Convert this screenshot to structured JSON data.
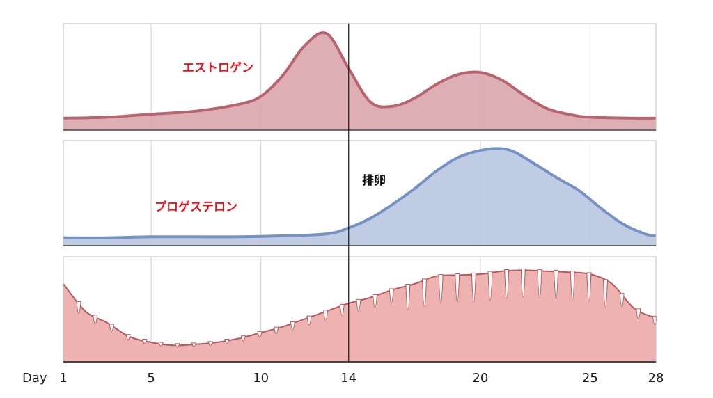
{
  "chart_data": {
    "type": "area",
    "x_axis": {
      "prefix_label": "Day",
      "ticks": [
        1,
        5,
        10,
        14,
        20,
        25,
        28
      ],
      "range": [
        1,
        28
      ]
    },
    "ovulation": {
      "day": 14,
      "label": "排卵"
    },
    "panels": [
      {
        "label": "エストロゲン",
        "color": "#b8646e",
        "fill": "#d9a6ad",
        "values": [
          [
            1,
            0.12
          ],
          [
            3,
            0.13
          ],
          [
            5,
            0.16
          ],
          [
            7,
            0.19
          ],
          [
            9,
            0.26
          ],
          [
            10,
            0.34
          ],
          [
            11,
            0.55
          ],
          [
            12,
            0.85
          ],
          [
            13,
            0.97
          ],
          [
            14,
            0.62
          ],
          [
            15,
            0.28
          ],
          [
            16,
            0.24
          ],
          [
            17,
            0.32
          ],
          [
            18,
            0.46
          ],
          [
            19,
            0.56
          ],
          [
            20,
            0.58
          ],
          [
            21,
            0.5
          ],
          [
            22,
            0.35
          ],
          [
            23,
            0.22
          ],
          [
            24,
            0.16
          ],
          [
            25,
            0.13
          ],
          [
            27,
            0.12
          ],
          [
            28,
            0.12
          ]
        ]
      },
      {
        "label": "プロゲステロン",
        "color": "#7691c4",
        "fill": "#b8c6e0",
        "values": [
          [
            1,
            0.08
          ],
          [
            3,
            0.08
          ],
          [
            5,
            0.09
          ],
          [
            7,
            0.09
          ],
          [
            9,
            0.09
          ],
          [
            11,
            0.1
          ],
          [
            13,
            0.12
          ],
          [
            14,
            0.18
          ],
          [
            15,
            0.28
          ],
          [
            16,
            0.42
          ],
          [
            17,
            0.58
          ],
          [
            18,
            0.76
          ],
          [
            19,
            0.9
          ],
          [
            20,
            0.97
          ],
          [
            20.8,
            0.99
          ],
          [
            21.5,
            0.96
          ],
          [
            22.5,
            0.83
          ],
          [
            23.5,
            0.69
          ],
          [
            24.5,
            0.56
          ],
          [
            25.5,
            0.38
          ],
          [
            26.5,
            0.22
          ],
          [
            27.5,
            0.12
          ],
          [
            28,
            0.1
          ]
        ]
      },
      {
        "label": "",
        "color": "#b05a5e",
        "fill": "#eeb2b0",
        "values": [
          [
            1,
            0.8
          ],
          [
            2,
            0.52
          ],
          [
            3,
            0.4
          ],
          [
            4,
            0.26
          ],
          [
            5,
            0.2
          ],
          [
            6,
            0.17
          ],
          [
            7,
            0.18
          ],
          [
            8,
            0.2
          ],
          [
            9,
            0.24
          ],
          [
            10,
            0.3
          ],
          [
            11,
            0.36
          ],
          [
            12,
            0.44
          ],
          [
            13,
            0.52
          ],
          [
            14,
            0.6
          ],
          [
            15,
            0.66
          ],
          [
            16,
            0.74
          ],
          [
            17,
            0.8
          ],
          [
            18,
            0.88
          ],
          [
            19,
            0.89
          ],
          [
            20,
            0.9
          ],
          [
            21,
            0.93
          ],
          [
            22,
            0.94
          ],
          [
            23,
            0.93
          ],
          [
            24,
            0.92
          ],
          [
            25,
            0.9
          ],
          [
            26,
            0.8
          ],
          [
            27,
            0.55
          ],
          [
            28,
            0.45
          ]
        ]
      }
    ],
    "grid": true
  }
}
